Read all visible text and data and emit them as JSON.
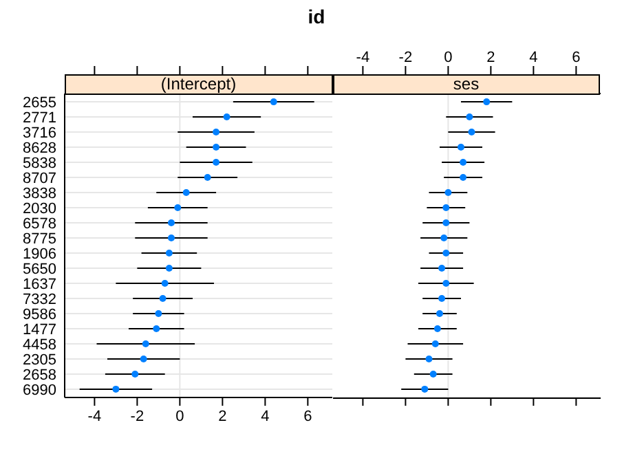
{
  "chart_data": [
    {
      "type": "scatter",
      "title": "(Intercept)",
      "annotations": [
        "id"
      ],
      "orientation": "horizontal",
      "categories": [
        "2655",
        "2771",
        "3716",
        "8628",
        "5838",
        "8707",
        "3838",
        "2030",
        "6578",
        "8775",
        "1906",
        "5650",
        "1637",
        "7332",
        "9586",
        "1477",
        "4458",
        "2305",
        "2658",
        "6990"
      ],
      "values": [
        4.4,
        2.2,
        1.7,
        1.7,
        1.7,
        1.3,
        0.3,
        -0.1,
        -0.4,
        -0.4,
        -0.5,
        -0.5,
        -0.7,
        -0.8,
        -1.0,
        -1.1,
        -1.6,
        -1.7,
        -2.1,
        -3.0
      ],
      "errors": [
        1.9,
        1.6,
        1.8,
        1.4,
        1.7,
        1.4,
        1.4,
        1.4,
        1.7,
        1.7,
        1.3,
        1.5,
        2.3,
        1.4,
        1.2,
        1.3,
        2.3,
        1.7,
        1.4,
        1.7
      ],
      "color": "#0080ff",
      "marker": "circle",
      "xlim": [
        -5.4,
        7.15
      ],
      "xticks": [
        -4,
        -2,
        0,
        2,
        4,
        6
      ],
      "grid": "y",
      "ref_lines": [
        {
          "axis": "x",
          "value": 0,
          "color": "#e6e6e6"
        }
      ]
    },
    {
      "type": "scatter",
      "title": "ses",
      "orientation": "horizontal",
      "categories": [
        "2655",
        "2771",
        "3716",
        "8628",
        "5838",
        "8707",
        "3838",
        "2030",
        "6578",
        "8775",
        "1906",
        "5650",
        "1637",
        "7332",
        "9586",
        "1477",
        "4458",
        "2305",
        "2658",
        "6990"
      ],
      "values": [
        1.8,
        1.0,
        1.1,
        0.6,
        0.7,
        0.7,
        0,
        -0.1,
        -0.1,
        -0.2,
        -0.1,
        -0.3,
        -0.1,
        -0.3,
        -0.4,
        -0.5,
        -0.6,
        -0.9,
        -0.7,
        -1.1
      ],
      "errors": [
        1.2,
        1.1,
        1.1,
        1.0,
        1.0,
        0.9,
        0.9,
        0.9,
        1.1,
        1.1,
        0.8,
        1.0,
        1.3,
        0.9,
        0.8,
        0.9,
        1.3,
        1.1,
        0.9,
        1.1
      ],
      "color": "#0080ff",
      "marker": "circle",
      "xlim": [
        -5.4,
        7.15
      ],
      "xticks": [
        -4,
        -2,
        0,
        2,
        4,
        6
      ],
      "tick_labels": "x",
      "grid": "y",
      "ref_lines": [
        {
          "axis": "x",
          "value": 0,
          "color": "#e6e6e6"
        }
      ]
    }
  ]
}
